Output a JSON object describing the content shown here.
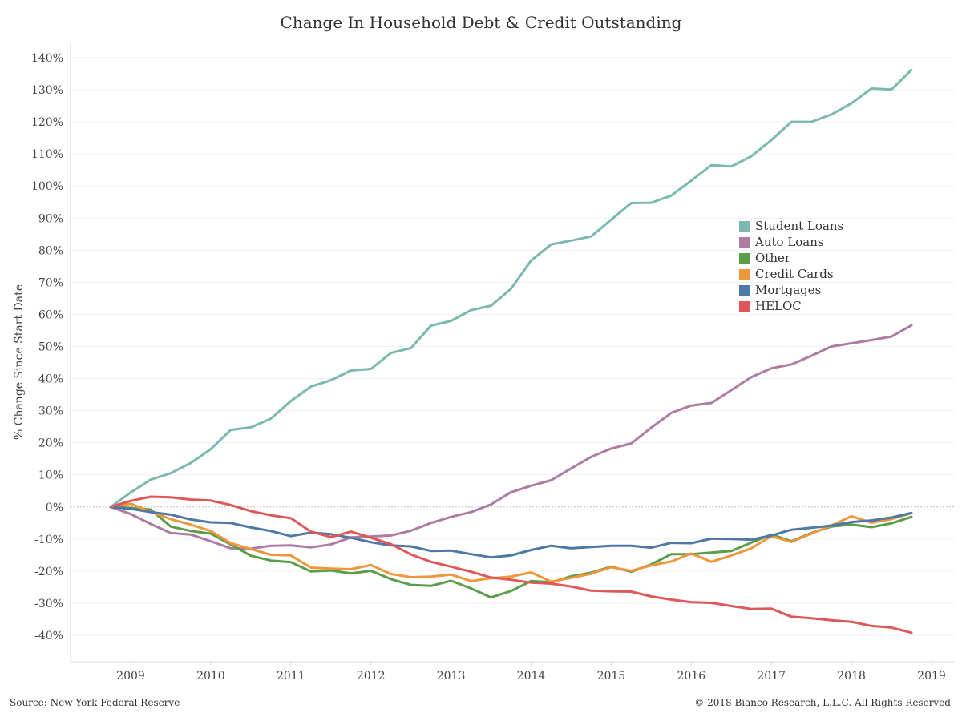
{
  "title": "Change In Household Debt & Credit Outstanding",
  "footer": {
    "source": "Source: New York Federal Reserve",
    "copyright": "© 2018 Bianco Research, L.L.C. All Rights Reserved"
  },
  "chart_data": {
    "type": "line",
    "title": "Change In Household Debt & Credit Outstanding",
    "xlabel": "",
    "ylabel": "% Change Since Start Date",
    "ylim": [
      -48,
      140
    ],
    "xlim": [
      2008.25,
      2019.25
    ],
    "y_ticks": [
      140,
      130,
      120,
      110,
      100,
      90,
      80,
      70,
      60,
      50,
      40,
      30,
      20,
      10,
      0,
      -10,
      -20,
      -30,
      -40
    ],
    "y_tick_labels": [
      "140%",
      "130%",
      "120%",
      "110%",
      "100%",
      "90%",
      "80%",
      "70%",
      "60%",
      "50%",
      "40%",
      "30%",
      "20%",
      "10%",
      "0%",
      "-10%",
      "-20%",
      "-30%",
      "-40%"
    ],
    "x_ticks": [
      2009,
      2010,
      2011,
      2012,
      2013,
      2014,
      2015,
      2016,
      2017,
      2018,
      2019
    ],
    "x_tick_labels": [
      "2009",
      "2010",
      "2011",
      "2012",
      "2013",
      "2014",
      "2015",
      "2016",
      "2017",
      "2018",
      "2019"
    ],
    "grid": true,
    "zero_line": "dotted",
    "legend_position": "right",
    "x": [
      2008.75,
      2009.0,
      2009.25,
      2009.5,
      2009.75,
      2010.0,
      2010.25,
      2010.5,
      2010.75,
      2011.0,
      2011.25,
      2011.5,
      2011.75,
      2012.0,
      2012.25,
      2012.5,
      2012.75,
      2013.0,
      2013.25,
      2013.5,
      2013.75,
      2014.0,
      2014.25,
      2014.5,
      2014.75,
      2015.0,
      2015.25,
      2015.5,
      2015.75,
      2016.0,
      2016.25,
      2016.5,
      2016.75,
      2017.0,
      2017.25,
      2017.5,
      2017.75,
      2018.0,
      2018.25,
      2018.5,
      2018.75
    ],
    "series": [
      {
        "name": "Student Loans",
        "color": "#7ab8b0",
        "values": [
          0,
          4.5,
          8.5,
          10.5,
          13.7,
          18,
          24,
          24.8,
          27.5,
          33,
          37.5,
          39.5,
          42.5,
          43,
          48,
          49.5,
          56.5,
          58,
          61.3,
          62.7,
          68,
          76.8,
          81.8,
          83,
          84.3,
          89.5,
          94.7,
          94.8,
          97,
          101.7,
          106.5,
          106.1,
          109.3,
          114.3,
          120,
          120,
          122.3,
          125.8,
          130.4,
          130.1,
          136.2
        ]
      },
      {
        "name": "Auto Loans",
        "color": "#ae7ba3",
        "values": [
          0,
          -2.2,
          -5.3,
          -8.1,
          -8.6,
          -10.7,
          -12.9,
          -13,
          -12.1,
          -12,
          -12.6,
          -11.7,
          -9.5,
          -9.2,
          -8.9,
          -7.4,
          -5,
          -3.1,
          -1.6,
          0.8,
          4.6,
          6.6,
          8.3,
          12,
          15.6,
          18.2,
          19.8,
          24.7,
          29.3,
          31.6,
          32.4,
          36.4,
          40.5,
          43.2,
          44.4,
          47.1,
          50,
          51,
          52,
          53.1,
          56.6
        ]
      },
      {
        "name": "Other",
        "color": "#5a9e4c",
        "values": [
          0,
          -0.3,
          -0.8,
          -6.1,
          -7.5,
          -8.3,
          -11.7,
          -15.2,
          -16.7,
          -17.2,
          -20.1,
          -19.8,
          -20.7,
          -19.9,
          -22.5,
          -24.3,
          -24.6,
          -23,
          -25.4,
          -28.2,
          -26.2,
          -23.1,
          -23.5,
          -21.6,
          -20.5,
          -18.6,
          -20.2,
          -17.9,
          -14.7,
          -14.7,
          -14.2,
          -13.7,
          -11.1,
          -8.6,
          -10.7,
          -8.1,
          -6.1,
          -5.5,
          -6.3,
          -5.1,
          -3.1
        ]
      },
      {
        "name": "Credit Cards",
        "color": "#f0973b",
        "values": [
          0,
          1,
          -1.5,
          -3.8,
          -5.5,
          -7.5,
          -11.3,
          -13.1,
          -14.9,
          -15.1,
          -18.9,
          -19.2,
          -19.4,
          -18.1,
          -20.9,
          -21.9,
          -21.7,
          -21.1,
          -23.1,
          -22.2,
          -21.7,
          -20.4,
          -23.3,
          -22.1,
          -20.8,
          -18.8,
          -19.9,
          -18.2,
          -17,
          -14.5,
          -17.1,
          -15.1,
          -12.9,
          -9.1,
          -10.9,
          -8.3,
          -5.8,
          -2.9,
          -4.9,
          -3.8,
          -1.9
        ]
      },
      {
        "name": "Mortgages",
        "color": "#4e79a7",
        "values": [
          0,
          -0.6,
          -1.6,
          -2.4,
          -3.9,
          -4.8,
          -5,
          -6.4,
          -7.5,
          -9.1,
          -8,
          -8.5,
          -9.6,
          -11,
          -12,
          -12.3,
          -13.7,
          -13.6,
          -14.7,
          -15.7,
          -15.1,
          -13.4,
          -12.1,
          -12.9,
          -12.5,
          -12.1,
          -12.1,
          -12.7,
          -11.2,
          -11.3,
          -9.9,
          -10,
          -10.2,
          -8.9,
          -7.1,
          -6.5,
          -5.8,
          -4.7,
          -4.2,
          -3.3,
          -1.9
        ]
      },
      {
        "name": "HELOC",
        "color": "#e15759",
        "values": [
          0,
          1.9,
          3.2,
          3,
          2.3,
          2,
          0.6,
          -1.3,
          -2.6,
          -3.5,
          -7.7,
          -9.4,
          -7.7,
          -9.6,
          -11.6,
          -14.8,
          -17.1,
          -18.6,
          -20.2,
          -22,
          -22.7,
          -23.6,
          -23.9,
          -24.8,
          -26.1,
          -26.3,
          -26.4,
          -27.9,
          -28.9,
          -29.7,
          -29.9,
          -30.9,
          -31.8,
          -31.7,
          -34.2,
          -34.7,
          -35.3,
          -35.8,
          -37.1,
          -37.6,
          -39.2
        ]
      }
    ]
  }
}
